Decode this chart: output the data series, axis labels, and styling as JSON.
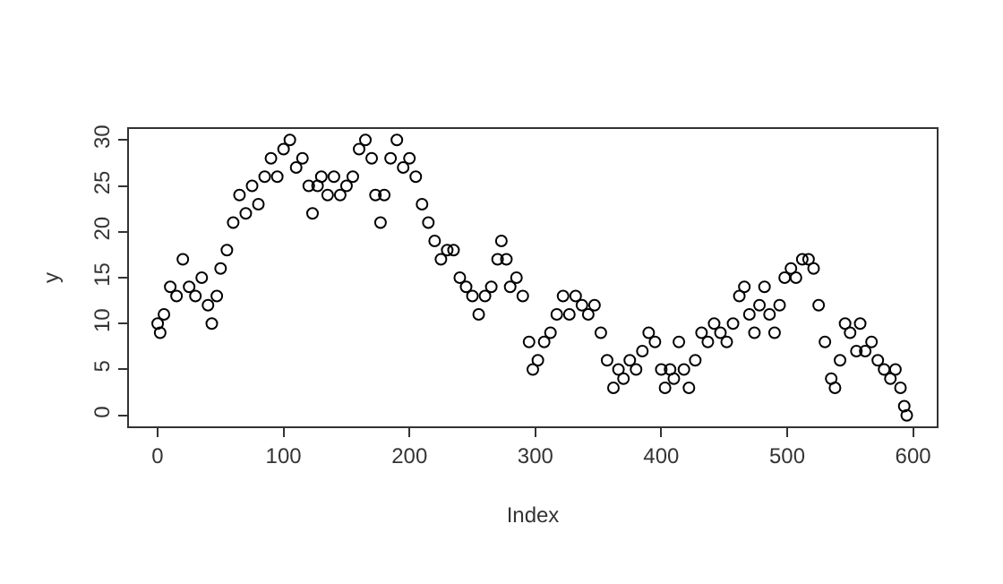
{
  "chart_data": {
    "type": "scatter",
    "xlabel": "Index",
    "ylabel": "y",
    "x": [
      0,
      2,
      5,
      10,
      15,
      20,
      25,
      30,
      35,
      40,
      43,
      47,
      50,
      55,
      60,
      65,
      70,
      75,
      80,
      85,
      90,
      95,
      100,
      105,
      110,
      115,
      120,
      123,
      127,
      130,
      135,
      140,
      145,
      150,
      155,
      160,
      165,
      170,
      173,
      177,
      180,
      185,
      190,
      195,
      200,
      205,
      210,
      215,
      220,
      225,
      230,
      235,
      240,
      245,
      250,
      255,
      260,
      265,
      270,
      273,
      277,
      280,
      285,
      290,
      295,
      298,
      302,
      307,
      312,
      317,
      322,
      327,
      332,
      337,
      342,
      347,
      352,
      357,
      362,
      366,
      370,
      375,
      380,
      385,
      390,
      395,
      400,
      403,
      407,
      410,
      414,
      418,
      422,
      427,
      432,
      437,
      442,
      447,
      452,
      457,
      462,
      466,
      470,
      474,
      478,
      482,
      486,
      490,
      494,
      498,
      503,
      507,
      512,
      517,
      521,
      525,
      530,
      535,
      538,
      542,
      546,
      550,
      555,
      558,
      562,
      567,
      572,
      577,
      582,
      586,
      590,
      593,
      595
    ],
    "series": [
      {
        "color": "#000000",
        "values": [
          10,
          9,
          11,
          14,
          13,
          17,
          14,
          13,
          15,
          12,
          10,
          13,
          16,
          18,
          21,
          24,
          22,
          25,
          23,
          26,
          28,
          26,
          29,
          30,
          27,
          28,
          25,
          22,
          25,
          26,
          24,
          26,
          24,
          25,
          26,
          29,
          30,
          28,
          24,
          21,
          24,
          28,
          30,
          27,
          28,
          26,
          23,
          21,
          19,
          17,
          18,
          18,
          15,
          14,
          13,
          11,
          13,
          14,
          17,
          19,
          17,
          14,
          15,
          13,
          8,
          5,
          6,
          8,
          9,
          11,
          13,
          11,
          13,
          12,
          11,
          12,
          9,
          6,
          3,
          5,
          4,
          6,
          5,
          7,
          9,
          8,
          5,
          3,
          5,
          4,
          8,
          5,
          3,
          6,
          9,
          8,
          10,
          9,
          8,
          10,
          13,
          14,
          11,
          9,
          12,
          14,
          11,
          9,
          12,
          15,
          16,
          15,
          17,
          17,
          16,
          12,
          8,
          4,
          3,
          6,
          10,
          9,
          7,
          10,
          7,
          8,
          6,
          5,
          4,
          5,
          3,
          1,
          0
        ]
      }
    ],
    "xlim": [
      -22.8,
      618.8
    ],
    "ylim": [
      -1.2,
      31.2
    ],
    "xticks": [
      0,
      100,
      200,
      300,
      400,
      500,
      600
    ],
    "yticks": [
      0,
      5,
      10,
      15,
      20,
      25,
      30
    ],
    "marker": "circle"
  }
}
